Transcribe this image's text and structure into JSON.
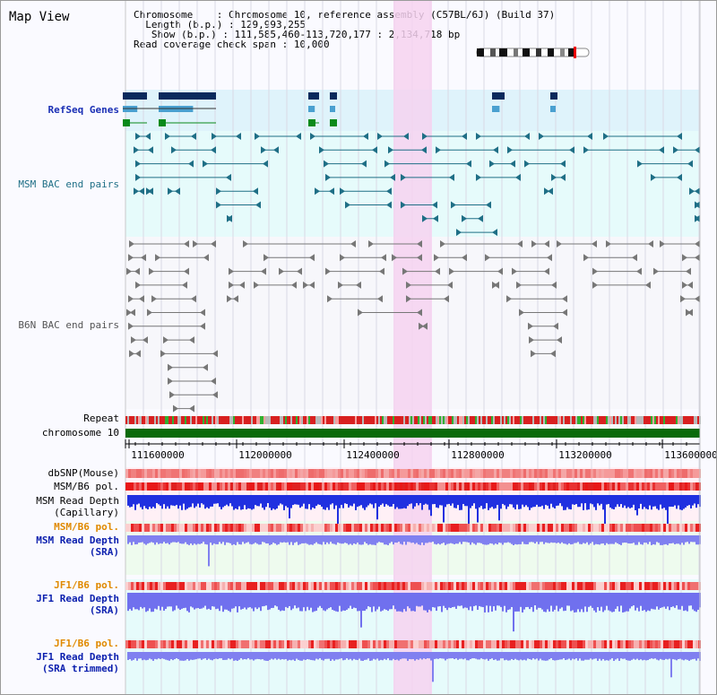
{
  "title": "Map View",
  "info": {
    "chromosome_label": "Chromosome",
    "chromosome_value": "Chromosome 10, reference assembly (C57BL/6J) (Build 37)",
    "length_label": "Length (b.p.)",
    "length_value": "129,993,255",
    "show_label": "Show (b.p.)",
    "show_value": "111,585,460-113,720,177 : 2,134,718 bp",
    "coverage_label": "Read coverage check span",
    "coverage_value": "10,000"
  },
  "tracks": {
    "refseq": "RefSeq Genes",
    "msm_bac": "MSM BAC end pairs",
    "b6n_bac": "B6N BAC end pairs",
    "repeat": "Repeat",
    "chromosome": "chromosome 10",
    "dbsnp": "dbSNP(Mouse)",
    "msm_b6_pol_1": "MSM/B6 pol.",
    "msm_depth_cap_1": "MSM Read Depth",
    "msm_depth_cap_2": "(Capillary)",
    "msm_b6_pol_2": "MSM/B6 pol.",
    "msm_depth_sra_1": "MSM Read Depth",
    "msm_depth_sra_2": "(SRA)",
    "jf1_b6_pol_1": "JF1/B6 pol.",
    "jf1_depth_sra_1": "JF1 Read Depth",
    "jf1_depth_sra_2": "(SRA)",
    "jf1_b6_pol_2": "JF1/B6 pol.",
    "jf1_depth_trim_1": "JF1 Read Depth",
    "jf1_depth_trim_2": "(SRA trimmed)"
  },
  "axis_ticks": [
    "111600000",
    "112000000",
    "112400000",
    "112800000",
    "113200000",
    "113600000"
  ],
  "colors": {
    "refseq_dark": "#0a2a5c",
    "refseq_mid": "#4aa0d0",
    "refseq_green": "#0a8a1a",
    "msm_bac": "#1f6f86",
    "b6n_bac": "#777777",
    "highlight": "#f6d2f0",
    "chrom_green": "#0a6a0a",
    "snp": "#f07070",
    "pol": "#e83030",
    "depth_cap": "#2030e0",
    "depth_sra": "#8080f0"
  }
}
